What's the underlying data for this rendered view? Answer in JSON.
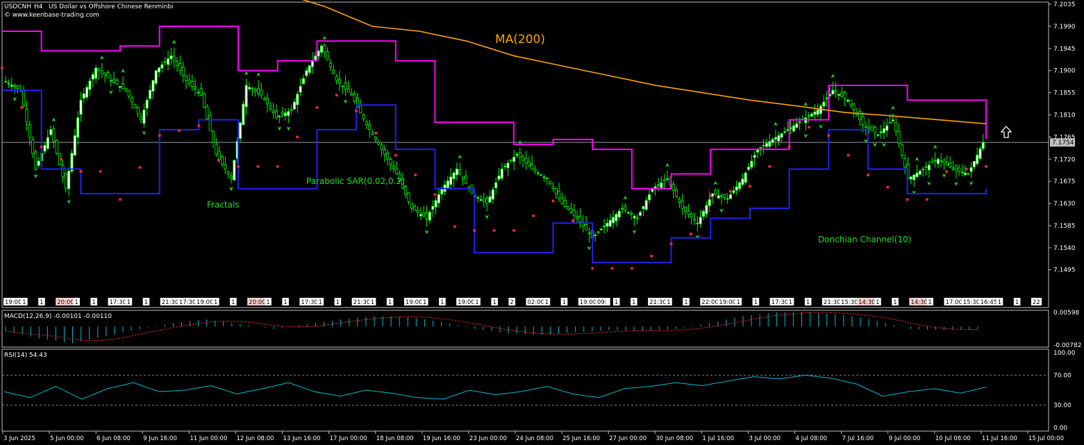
{
  "header": {
    "symbol": "USDCNH",
    "timeframe": "H4",
    "description": "US Dollar vs Offshore Chinese Renminbi",
    "website": "© www.keenbase-trading.com"
  },
  "labels": {
    "ma": "MA(200)",
    "parabolic_sar": "Parabolic SAR(0.02,0.2)",
    "fractals": "Fractals",
    "donchian": "Donchian Channel(10)"
  },
  "price_axis": {
    "ticks": [
      "7.2035",
      "7.1990",
      "7.1945",
      "7.1900",
      "7.1855",
      "7.1810",
      "7.1765",
      "7.1720",
      "7.1675",
      "7.1630",
      "7.1585",
      "7.1540",
      "7.1495"
    ],
    "current_price": "7.1754"
  },
  "session_labels": [
    "19:00",
    "1",
    "1",
    "20:00",
    "1",
    "1",
    "17:30",
    "1",
    "1",
    "21:30",
    "17:30",
    "19:00",
    "1",
    "1",
    "20:00",
    "1",
    "1",
    "17:30",
    "1",
    "1",
    "21:30",
    "1",
    "1",
    "19:00",
    "1",
    "1",
    "19:00",
    "1",
    "1",
    "2",
    "02:00",
    "1",
    "1",
    "19:00",
    "09:",
    "1",
    "1",
    "21:30",
    "1",
    "1",
    "22:00",
    "19:00",
    "1",
    "1",
    "17:30",
    "1",
    "1",
    "21:30",
    "15:30",
    "14:30",
    "1",
    "1",
    "14:30",
    "1",
    "17:00",
    "15:30",
    "16:45",
    "1",
    "1",
    "22"
  ],
  "macd": {
    "label": "MACD(12,26,9) -0.00101 -0.00110",
    "ticks": [
      "0.00598",
      "-0.00782"
    ]
  },
  "rsi": {
    "label": "RSI(14) 54.43",
    "ticks": [
      "100.00",
      "70.00",
      "30.00",
      "0.00"
    ]
  },
  "date_axis": [
    "3 Jun 2025",
    "5 Jun 00:00",
    "6 Jun 08:00",
    "9 Jun 16:00",
    "11 Jun 00:00",
    "12 Jun 08:00",
    "13 Jun 16:00",
    "17 Jun 00:00",
    "18 Jun 08:00",
    "19 Jun 16:00",
    "23 Jun 00:00",
    "24 Jun 08:00",
    "25 Jun 16:00",
    "27 Jun 00:00",
    "30 Jun 08:00",
    "1 Jul 16:00",
    "3 Jul 00:00",
    "4 Jul 08:00",
    "7 Jul 16:00",
    "9 Jul 00:00",
    "10 Jul 08:00",
    "11 Jul 16:00",
    "15 Jul 00:00"
  ],
  "colors": {
    "background": "#000000",
    "axis": "#c0c0c0",
    "bull": "#ffffff",
    "wick": "#00ff00",
    "ma": "#ffa500",
    "donchian_upper": "#ff00ff",
    "donchian_lower": "#2222ee",
    "sar": "#ff2244",
    "fractal": "#22dd22",
    "macd_hist": "#00bcd4",
    "macd_signal": "#ff3030",
    "rsi": "#00bcd4",
    "label_green": "#22dd22",
    "ma_label": "#ffa500"
  },
  "chart_data": [
    {
      "type": "candlestick",
      "title": "USDCNH H4 US Dollar vs Offshore Chinese Renminbi",
      "ylim": [
        7.1465,
        7.2035
      ],
      "x_labels": [
        "3 Jun 2025",
        "5 Jun 00:00",
        "6 Jun 08:00",
        "9 Jun 16:00",
        "11 Jun 00:00",
        "12 Jun 08:00",
        "13 Jun 16:00",
        "17 Jun 00:00",
        "18 Jun 08:00",
        "19 Jun 16:00",
        "23 Jun 00:00",
        "24 Jun 08:00",
        "25 Jun 16:00",
        "27 Jun 00:00",
        "30 Jun 08:00",
        "1 Jul 16:00",
        "3 Jul 00:00",
        "4 Jul 08:00",
        "7 Jul 16:00",
        "9 Jul 00:00",
        "10 Jul 08:00",
        "11 Jul 16:00",
        "15 Jul 00:00"
      ],
      "close_path": [
        7.1878,
        7.186,
        7.17,
        7.178,
        7.166,
        7.184,
        7.1905,
        7.188,
        7.186,
        7.18,
        7.19,
        7.193,
        7.188,
        7.185,
        7.173,
        7.168,
        7.187,
        7.185,
        7.1805,
        7.182,
        7.19,
        7.195,
        7.188,
        7.185,
        7.179,
        7.174,
        7.169,
        7.162,
        7.16,
        7.166,
        7.17,
        7.165,
        7.163,
        7.17,
        7.173,
        7.17,
        7.168,
        7.163,
        7.16,
        7.156,
        7.159,
        7.162,
        7.16,
        7.166,
        7.168,
        7.162,
        7.159,
        7.165,
        7.164,
        7.168,
        7.174,
        7.176,
        7.178,
        7.18,
        7.182,
        7.186,
        7.184,
        7.179,
        7.177,
        7.18,
        7.168,
        7.17,
        7.172,
        7.17,
        7.169,
        7.1754
      ],
      "series": [
        {
          "name": "MA(200)",
          "values": [
            7.206,
            7.203,
            7.199,
            7.198,
            7.196,
            7.193,
            7.191,
            7.189,
            7.187,
            7.1855,
            7.184,
            7.1828,
            7.1815,
            7.1808,
            7.18,
            7.1792
          ]
        },
        {
          "name": "Donchian Channel(10) upper",
          "values": [
            7.198,
            7.194,
            7.194,
            7.195,
            7.199,
            7.199,
            7.19,
            7.192,
            7.196,
            7.196,
            7.192,
            7.1795,
            7.1795,
            7.175,
            7.176,
            7.174,
            7.166,
            7.169,
            7.174,
            7.174,
            7.18,
            7.187,
            7.187,
            7.184,
            7.184,
            7.176
          ]
        },
        {
          "name": "Donchian Channel(10) lower",
          "values": [
            7.186,
            7.17,
            7.165,
            7.165,
            7.178,
            7.18,
            7.166,
            7.166,
            7.178,
            7.183,
            7.174,
            7.166,
            7.153,
            7.153,
            7.159,
            7.151,
            7.151,
            7.156,
            7.16,
            7.162,
            7.17,
            7.178,
            7.17,
            7.165,
            7.165,
            7.166
          ]
        }
      ]
    },
    {
      "type": "bar",
      "title": "MACD(12,26,9) -0.00101 -0.00110",
      "ylim": [
        -0.00782,
        0.00598
      ],
      "series": [
        {
          "name": "MACD",
          "values": [
            -0.002,
            -0.005,
            -0.007,
            -0.004,
            -0.001,
            0.0015,
            0.003,
            0.001,
            -0.001,
            0.001,
            0.003,
            0.0045,
            0.004,
            0.002,
            -0.001,
            -0.003,
            -0.0035,
            -0.0025,
            -0.0015,
            -0.002,
            -0.001,
            0.0015,
            0.0045,
            0.006,
            0.006,
            0.005,
            0.0025,
            -0.001,
            -0.0015,
            -0.001
          ]
        }
      ]
    },
    {
      "type": "line",
      "title": "RSI(14) 54.43",
      "ylim": [
        0,
        100
      ],
      "series": [
        {
          "name": "RSI",
          "values": [
            48,
            40,
            55,
            38,
            52,
            60,
            48,
            50,
            56,
            45,
            52,
            60,
            48,
            42,
            50,
            46,
            40,
            38,
            50,
            44,
            48,
            55,
            45,
            40,
            52,
            55,
            60,
            56,
            62,
            68,
            65,
            70,
            66,
            58,
            42,
            48,
            52,
            46,
            54
          ]
        }
      ]
    }
  ]
}
